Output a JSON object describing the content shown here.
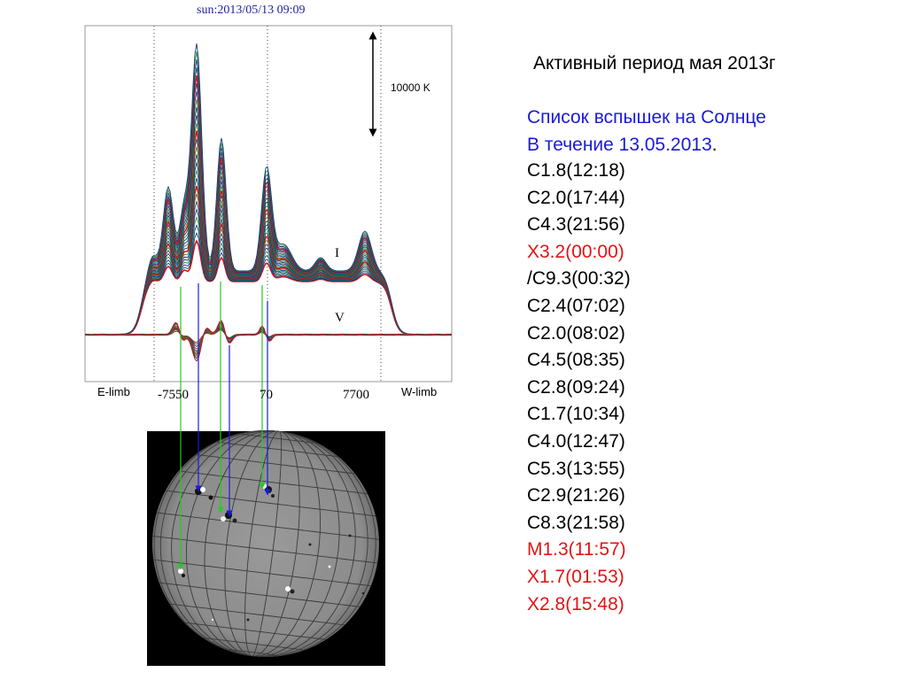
{
  "plot": {
    "title": "sun:2013/05/13 09:09",
    "scale_label": "10000 K",
    "curve_labels": {
      "intensity": "I",
      "polarization": "V"
    },
    "limb_labels": {
      "east": "E-limb",
      "west": "W-limb"
    },
    "x_ticks": [
      "-7550",
      "70",
      "7700"
    ],
    "colors": {
      "axis_title": "#1f1f9f",
      "green_arrows": "#22cc22",
      "blue_arrows": "#1a1adc",
      "curve_red": "#d01818",
      "curve_blue": "#1b3a7a",
      "curve_green": "#2e8b2e"
    }
  },
  "text_panel": {
    "heading": "Активный период мая 2013г",
    "subtitle_line1": "Список вспышек на Солнце",
    "subtitle_line2": "В течение 13.05.2013",
    "subtitle_dot": ".",
    "flares": [
      {
        "text": "C1.8(12:18)",
        "color": "black"
      },
      {
        "text": "C2.0(17:44)",
        "color": "black"
      },
      {
        "text": "C4.3(21:56)",
        "color": "black"
      },
      {
        "text": "X3.2(00:00)",
        "color": "red"
      },
      {
        "text": "/C9.3(00:32)",
        "color": "black"
      },
      {
        "text": "C2.4(07:02)",
        "color": "black"
      },
      {
        "text": "C2.0(08:02)",
        "color": "black"
      },
      {
        "text": "C4.5(08:35)",
        "color": "black"
      },
      {
        "text": "C2.8(09:24)",
        "color": "black"
      },
      {
        "text": "C1.7(10:34)",
        "color": "black"
      },
      {
        "text": "C4.0(12:47)",
        "color": "black"
      },
      {
        "text": "C5.3(13:55)",
        "color": "black"
      },
      {
        "text": "C2.9(21:26)",
        "color": "black"
      },
      {
        "text": "C8.3(21:58)",
        "color": "black"
      },
      {
        "text": "M1.3(11:57)",
        "color": "red"
      },
      {
        "text": "X1.7(01:53)",
        "color": "red"
      },
      {
        "text": "X2.8(15:48)",
        "color": "red"
      }
    ]
  }
}
